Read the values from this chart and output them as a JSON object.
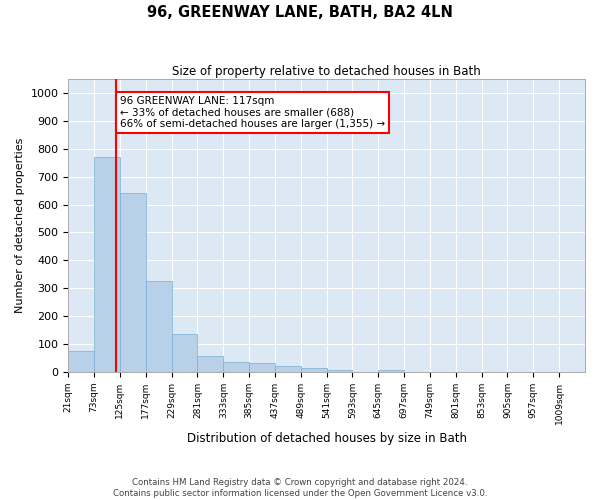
{
  "title": "96, GREENWAY LANE, BATH, BA2 4LN",
  "subtitle": "Size of property relative to detached houses in Bath",
  "xlabel": "Distribution of detached houses by size in Bath",
  "ylabel": "Number of detached properties",
  "bar_color": "#b8d0e8",
  "bar_edge_color": "#7bafd4",
  "background_color": "#dce9f5",
  "grid_color": "#ffffff",
  "red_line_x": 117,
  "annotation_text": "96 GREENWAY LANE: 117sqm\n← 33% of detached houses are smaller (688)\n66% of semi-detached houses are larger (1,355) →",
  "footer_line1": "Contains HM Land Registry data © Crown copyright and database right 2024.",
  "footer_line2": "Contains public sector information licensed under the Open Government Licence v3.0.",
  "bin_edges": [
    21,
    73,
    125,
    177,
    229,
    281,
    333,
    385,
    437,
    489,
    541,
    593,
    645,
    697,
    749,
    801,
    853,
    905,
    957,
    1009,
    1061
  ],
  "bar_heights": [
    75,
    770,
    640,
    325,
    135,
    55,
    35,
    30,
    22,
    15,
    5,
    0,
    5,
    0,
    0,
    0,
    0,
    0,
    0,
    0
  ],
  "ylim": [
    0,
    1050
  ],
  "yticks": [
    0,
    100,
    200,
    300,
    400,
    500,
    600,
    700,
    800,
    900,
    1000
  ]
}
